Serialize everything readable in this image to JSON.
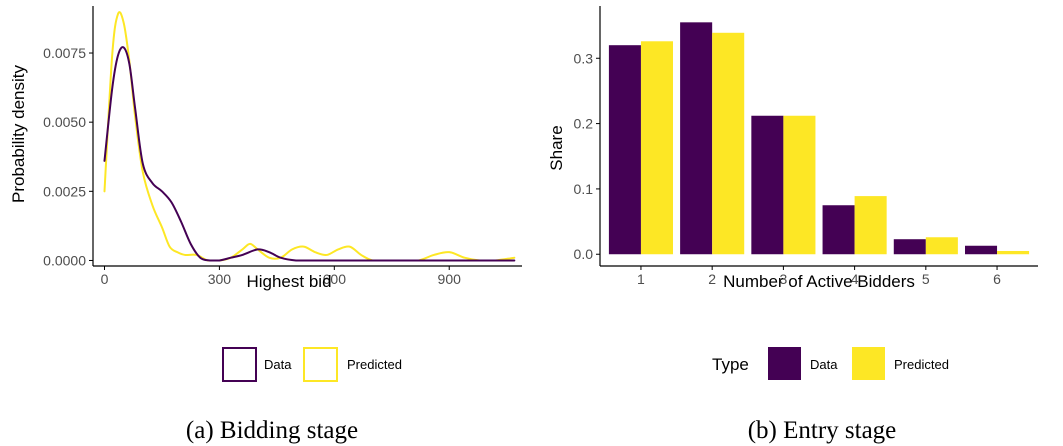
{
  "colors": {
    "data": "#440154",
    "predicted": "#FDE725",
    "axis": "#000000",
    "tick_text": "#4d4d4d"
  },
  "chart_data": [
    {
      "type": "line",
      "caption": "(a) Bidding stage",
      "xlabel": "Highest bid",
      "ylabel": "Probability density",
      "xlim": [
        -30,
        1090
      ],
      "ylim": [
        -0.0002,
        0.0092
      ],
      "x_ticks": [
        0,
        300,
        600,
        900
      ],
      "x_tick_labels": [
        "0",
        "300",
        "600",
        "900"
      ],
      "y_ticks": [
        0,
        0.0025,
        0.005,
        0.0075
      ],
      "y_tick_labels": [
        "0.0000",
        "0.0025",
        "0.0050",
        "0.0075"
      ],
      "legend_position": "bottom",
      "legend_entries": [
        "Data",
        "Predicted"
      ],
      "series": [
        {
          "name": "Data",
          "x": [
            0,
            20,
            35,
            50,
            65,
            80,
            100,
            125,
            150,
            175,
            200,
            225,
            250,
            275,
            300,
            330,
            360,
            400,
            430,
            460,
            500,
            550,
            600,
            700,
            800,
            900,
            1000,
            1070
          ],
          "y": [
            0.0036,
            0.0062,
            0.0074,
            0.0077,
            0.0071,
            0.0055,
            0.0035,
            0.0028,
            0.0025,
            0.0021,
            0.0014,
            0.0006,
            0.0001,
            0.0,
            0.0,
            0.0001,
            0.0002,
            0.0004,
            0.0003,
            0.0001,
            0.0,
            0.0,
            0.0,
            0.0,
            0.0,
            0.0,
            0.0,
            0.0
          ]
        },
        {
          "name": "Predicted",
          "x": [
            0,
            20,
            35,
            50,
            65,
            80,
            100,
            125,
            150,
            170,
            190,
            210,
            240,
            270,
            300,
            330,
            360,
            380,
            400,
            430,
            460,
            490,
            520,
            550,
            580,
            610,
            640,
            670,
            700,
            740,
            780,
            820,
            860,
            900,
            940,
            980,
            1020,
            1070
          ],
          "y": [
            0.0025,
            0.0074,
            0.0089,
            0.0086,
            0.0072,
            0.0052,
            0.0032,
            0.002,
            0.0012,
            0.0005,
            0.0003,
            0.0002,
            0.0002,
            0.0,
            0.0,
            0.0001,
            0.0004,
            0.0006,
            0.0004,
            0.0001,
            0.0001,
            0.0004,
            0.0005,
            0.0003,
            0.0002,
            0.0004,
            0.0005,
            0.0002,
            0.0,
            0.0,
            0.0,
            0.0,
            0.0002,
            0.0003,
            0.0001,
            0.0,
            0.0,
            0.0001
          ]
        }
      ]
    },
    {
      "type": "bar",
      "caption": "(b) Entry stage",
      "xlabel": "Number of Active Bidders",
      "ylabel": "Share",
      "categories": [
        "1",
        "2",
        "3",
        "4",
        "5",
        "6"
      ],
      "ylim": [
        -0.018,
        0.38
      ],
      "y_ticks": [
        0,
        0.1,
        0.2,
        0.3
      ],
      "y_tick_labels": [
        "0.0",
        "0.1",
        "0.2",
        "0.3"
      ],
      "legend_position": "bottom",
      "legend_title": "Type",
      "legend_entries": [
        "Data",
        "Predicted"
      ],
      "series": [
        {
          "name": "Data",
          "values": [
            0.32,
            0.355,
            0.212,
            0.075,
            0.023,
            0.013
          ]
        },
        {
          "name": "Predicted",
          "values": [
            0.326,
            0.339,
            0.212,
            0.089,
            0.026,
            0.005
          ]
        }
      ]
    }
  ]
}
